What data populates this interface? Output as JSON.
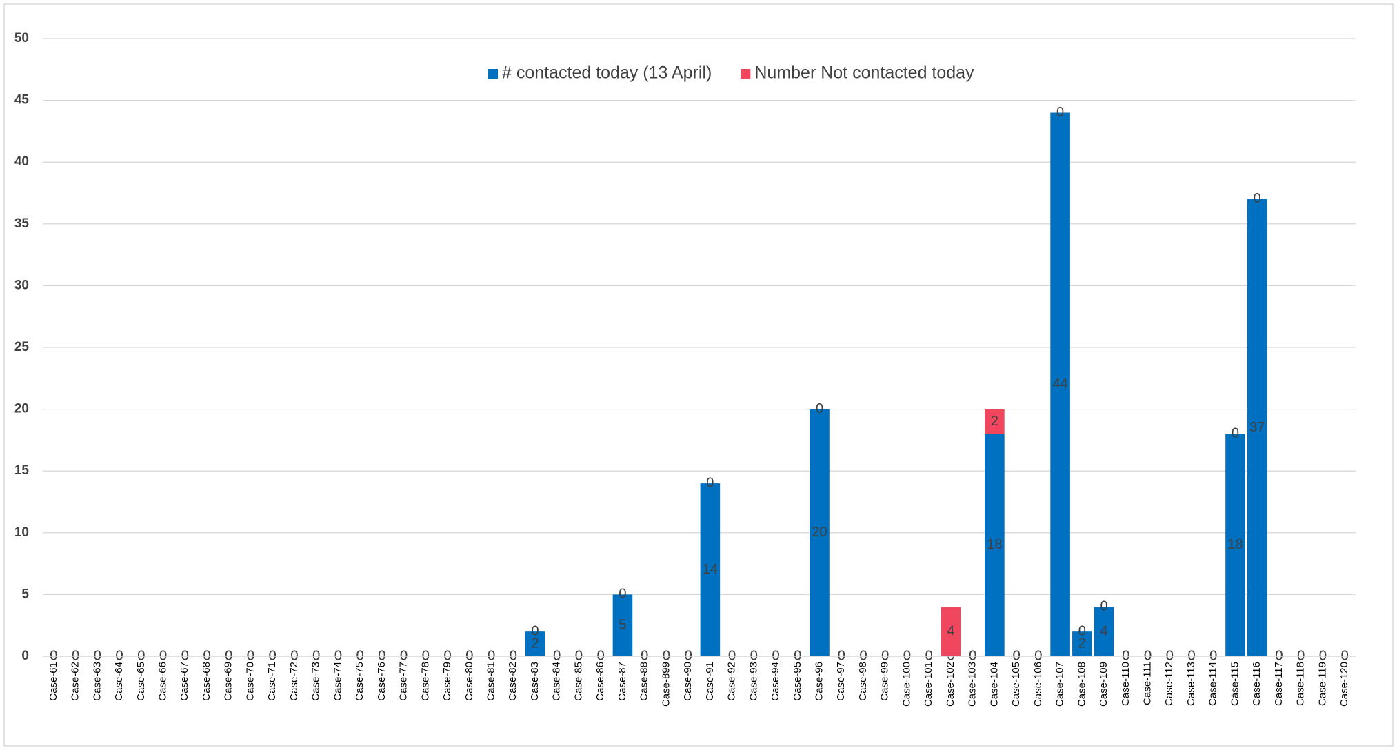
{
  "chart_data": {
    "type": "stacked_bar",
    "categories": [
      "Case-61",
      "Case-62",
      "Case-63",
      "Case-64",
      "Case-65",
      "Case-66",
      "Case-67",
      "Case-68",
      "Case-69",
      "Case-70",
      "Case-71",
      "Case-72",
      "Case-73",
      "Case-74",
      "Case-75",
      "Case-76",
      "Case-77",
      "Case-78",
      "Case-79",
      "Case-80",
      "Case-81",
      "Case-82",
      "Case-83",
      "Case-84",
      "Case-85",
      "Case-86",
      "Case-87",
      "Case-88",
      "Case-899",
      "Case-90",
      "Case-91",
      "Case-92",
      "Case-93",
      "Case-94",
      "Case-95",
      "Case-96",
      "Case-97",
      "Case-98",
      "Case-99",
      "Case-100",
      "Case-101",
      "Case-102",
      "Case-103",
      "Case-104",
      "Case-105",
      "Case-106",
      "Case-107",
      "Case-108",
      "Case-109",
      "Case-110",
      "Case-111",
      "Case-112",
      "Case-113",
      "Case-114",
      "Case-115",
      "Case-116",
      "Case-117",
      "Case-118",
      "Case-119",
      "Case-120"
    ],
    "series": [
      {
        "name": "# contacted today (13 April)",
        "color": "#0070c0",
        "values": [
          0,
          0,
          0,
          0,
          0,
          0,
          0,
          0,
          0,
          0,
          0,
          0,
          0,
          0,
          0,
          0,
          0,
          0,
          0,
          0,
          0,
          0,
          2,
          0,
          0,
          0,
          5,
          0,
          0,
          0,
          14,
          0,
          0,
          0,
          0,
          20,
          0,
          0,
          0,
          0,
          0,
          0,
          0,
          18,
          0,
          0,
          44,
          2,
          4,
          0,
          0,
          0,
          0,
          0,
          18,
          37,
          0,
          0,
          0,
          0
        ]
      },
      {
        "name": "Number Not contacted today",
        "color": "#f0475f",
        "values": [
          0,
          0,
          0,
          0,
          0,
          0,
          0,
          0,
          0,
          0,
          0,
          0,
          0,
          0,
          0,
          0,
          0,
          0,
          0,
          0,
          0,
          0,
          0,
          0,
          0,
          0,
          0,
          0,
          0,
          0,
          0,
          0,
          0,
          0,
          0,
          0,
          0,
          0,
          0,
          0,
          0,
          4,
          0,
          2,
          0,
          0,
          0,
          0,
          0,
          0,
          0,
          0,
          0,
          0,
          0,
          0,
          0,
          0,
          0,
          0
        ]
      }
    ],
    "ylim": [
      0,
      50
    ],
    "yticks": [
      0,
      5,
      10,
      15,
      20,
      25,
      30,
      35,
      40,
      45,
      50
    ],
    "grid": true,
    "legend": "top"
  }
}
